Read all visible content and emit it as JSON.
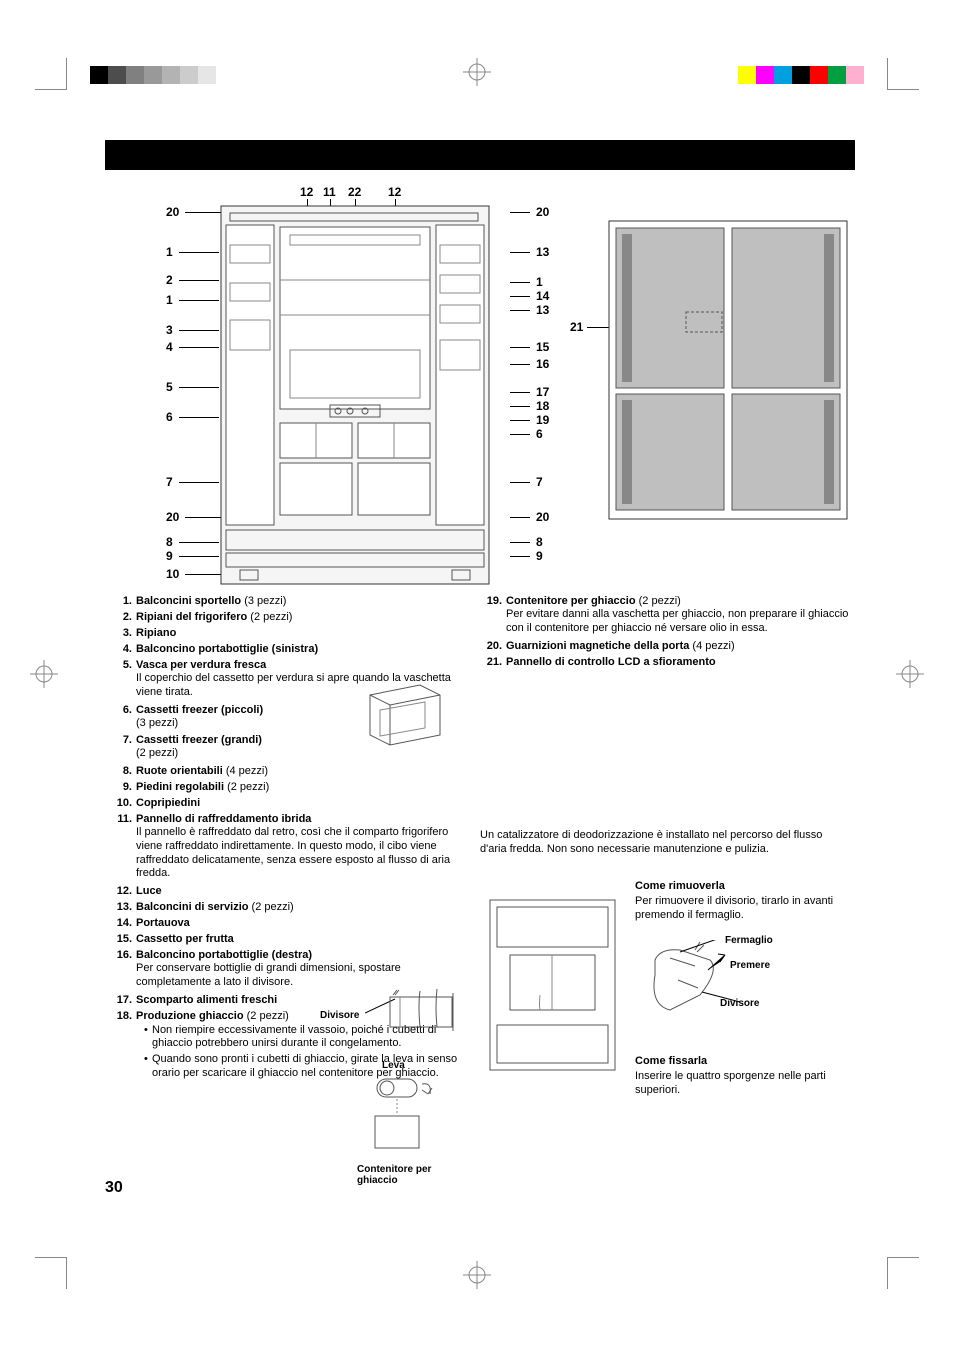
{
  "page_number": "30",
  "crop_colors_left": [
    "#000000",
    "#4d4d4d",
    "#808080",
    "#999999",
    "#b3b3b3",
    "#cccccc",
    "#e6e6e6"
  ],
  "crop_colors_right": [
    "#ffff00",
    "#ff00ff",
    "#00a0e0",
    "#000000",
    "#ff0000",
    "#00a040",
    "#ffb0d0"
  ],
  "left_diagram": {
    "top_labels": [
      "12",
      "11",
      "22",
      "12"
    ],
    "left_labels": [
      "20",
      "1",
      "2",
      "1",
      "3",
      "4",
      "5",
      "6",
      "7",
      "20",
      "8",
      "9",
      "10"
    ],
    "right_labels": [
      "20",
      "13",
      "1",
      "14",
      "13",
      "15",
      "16",
      "17",
      "18",
      "19",
      "6",
      "7",
      "20",
      "8",
      "9"
    ]
  },
  "right_diagram": {
    "left_label": "21"
  },
  "parts_left": [
    {
      "num": "1.",
      "title": "Balconcini sportello",
      "qty": "(3 pezzi)"
    },
    {
      "num": "2.",
      "title": "Ripiani del frigorifero",
      "qty": "(2 pezzi)"
    },
    {
      "num": "3.",
      "title": "Ripiano"
    },
    {
      "num": "4.",
      "title": "Balconcino portabottiglie (sinistra)"
    },
    {
      "num": "5.",
      "title": "Vasca per verdura fresca",
      "desc": "Il coperchio del cassetto per verdura si apre quando la vaschetta viene tirata."
    },
    {
      "num": "6.",
      "title": "Cassetti freezer (piccoli)",
      "desc": "(3 pezzi)"
    },
    {
      "num": "7.",
      "title": "Cassetti freezer (grandi)",
      "desc": "(2 pezzi)"
    },
    {
      "num": "8.",
      "title": "Ruote orientabili",
      "qty": "(4 pezzi)"
    },
    {
      "num": "9.",
      "title": "Piedini regolabili",
      "qty": "(2 pezzi)"
    },
    {
      "num": "10.",
      "title": "Copripiedini"
    },
    {
      "num": "11.",
      "title": "Pannello di raffreddamento ibrida",
      "desc": "Il pannello è raffreddato dal retro, così che il comparto frigorifero viene raffreddato indirettamente. In questo modo, il cibo viene raffreddato delicatamente, senza essere esposto al flusso di aria fredda."
    },
    {
      "num": "12.",
      "title": "Luce"
    },
    {
      "num": "13.",
      "title": "Balconcini di servizio",
      "qty": "(2 pezzi)"
    },
    {
      "num": "14.",
      "title": "Portauova"
    },
    {
      "num": "15.",
      "title": "Cassetto per frutta"
    },
    {
      "num": "16.",
      "title": "Balconcino portabottiglie (destra)",
      "desc": "Per conservare bottiglie di grandi dimensioni, spostare completamente a lato il divisore."
    },
    {
      "num": "17.",
      "title": "Scomparto alimenti freschi"
    },
    {
      "num": "18.",
      "title": "Produzione ghiaccio",
      "qty": "(2 pezzi)",
      "bullets": [
        "Non riempire eccessivamente il vassoio, poiché i cubetti di ghiaccio potrebbero unirsi durante il congelamento.",
        "Quando sono pronti i cubetti di ghiaccio, girate la leva in senso orario per scaricare il ghiaccio nel contenitore per ghiaccio."
      ]
    }
  ],
  "parts_right": [
    {
      "num": "19.",
      "title": "Contenitore per ghiaccio",
      "qty": "(2 pezzi)",
      "desc": "Per evitare danni alla vaschetta per ghiaccio, non preparare il ghiaccio con il contenitore per ghiaccio né versare olio in essa."
    },
    {
      "num": "20.",
      "title": "Guarnizioni magnetiche della porta",
      "qty": "(4 pezzi)"
    },
    {
      "num": "21.",
      "title": "Pannello di controllo LCD a sfioramento"
    }
  ],
  "deodor_note": "Un catalizzatore di deodorizzazione è installato nel percorso del flusso d'aria fredda. Non sono necessarie manutenzione e pulizia.",
  "mini_labels": {
    "divisore": "Divisore",
    "leva": "Leva",
    "contenitore": "Contenitore per ghiaccio",
    "fermaglio": "Fermaglio",
    "premere": "Premere",
    "divisore2": "Divisore"
  },
  "how_remove": {
    "title": "Come rimuoverla",
    "text": "Per rimuovere il divisorio, tirarlo in avanti premendo il fermaglio."
  },
  "how_fix": {
    "title": "Come fissarla",
    "text": "Inserire le quattro sporgenze nelle parti superiori."
  }
}
